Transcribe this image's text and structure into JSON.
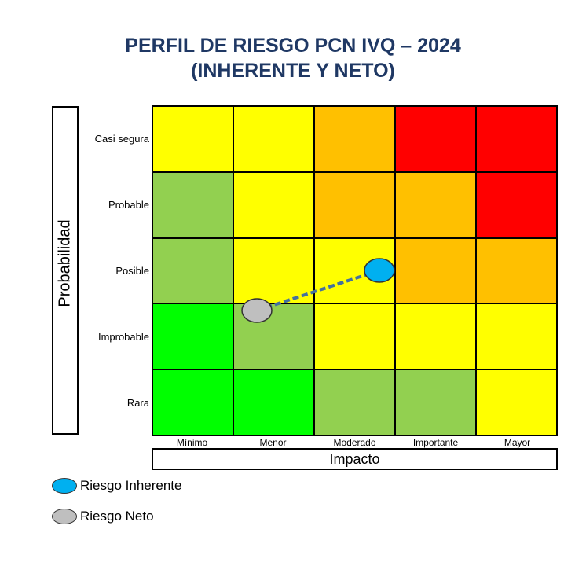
{
  "title": {
    "line1": "PERFIL DE RIESGO PCN IVQ – 2024",
    "line2": "(INHERENTE Y NETO)"
  },
  "y_axis": {
    "label": "Probabilidad",
    "levels": [
      "Casi segura",
      "Probable",
      "Posible",
      "Improbable",
      "Rara"
    ]
  },
  "x_axis": {
    "label": "Impacto",
    "levels": [
      "Mínimo",
      "Menor",
      "Moderado",
      "Importante",
      "Mayor"
    ]
  },
  "colors": {
    "red": "#ff0000",
    "orange": "#ffc000",
    "yellow": "#ffff00",
    "lightgreen": "#92d050",
    "green": "#00ff00",
    "inherent": "#00b0f0",
    "net": "#bfbfbf",
    "connector": "#44719e"
  },
  "matrix": [
    [
      "yellow",
      "yellow",
      "orange",
      "red",
      "red"
    ],
    [
      "lightgreen",
      "yellow",
      "orange",
      "orange",
      "red"
    ],
    [
      "lightgreen",
      "yellow",
      "yellow",
      "orange",
      "orange"
    ],
    [
      "green",
      "lightgreen",
      "yellow",
      "yellow",
      "yellow"
    ],
    [
      "green",
      "green",
      "lightgreen",
      "lightgreen",
      "yellow"
    ]
  ],
  "markers": {
    "inherent": {
      "impact": "Moderado",
      "probability": "Posible"
    },
    "net": {
      "impact": "Menor",
      "probability": "Improbable"
    }
  },
  "legend": [
    {
      "label": "Riesgo Inherente",
      "color": "inherent"
    },
    {
      "label": "Riesgo Neto",
      "color": "net"
    }
  ]
}
